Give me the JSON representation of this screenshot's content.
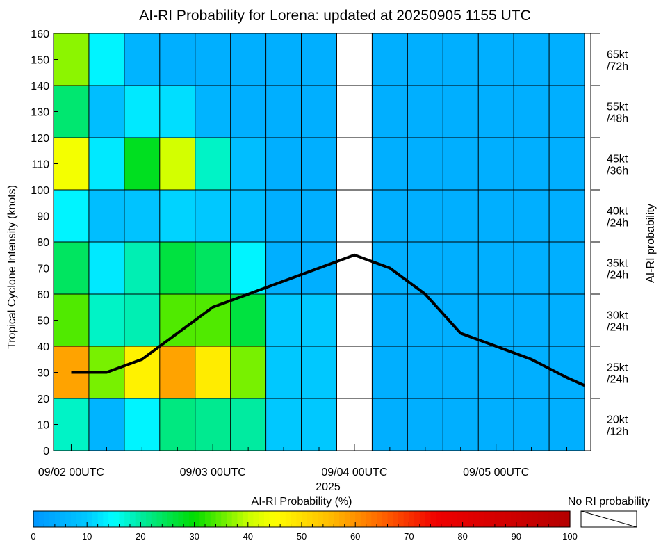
{
  "chart_data": {
    "type": "heatmap",
    "title": "AI-RI Probability for Lorena: updated at 20250905 1155 UTC",
    "ylabel": "Tropical Cyclone Intensity (knots)",
    "right_label": "AI-RI probability",
    "xlabel_year": "2025",
    "ylim": [
      0,
      160
    ],
    "x_tick_labels": [
      "09/02 00UTC",
      "09/03 00UTC",
      "09/04 00UTC",
      "09/05 00UTC"
    ],
    "x_tick_major_hours": [
      0,
      24,
      48,
      72
    ],
    "x_range_hours": [
      -3,
      87
    ],
    "y_ticks": [
      0,
      10,
      20,
      30,
      40,
      50,
      60,
      70,
      80,
      90,
      100,
      110,
      120,
      130,
      140,
      150,
      160
    ],
    "time_steps_hours": [
      0,
      6,
      12,
      18,
      24,
      30,
      36,
      42,
      48,
      54,
      60,
      66,
      72,
      78,
      84
    ],
    "intensity_bins": [
      {
        "label": "20kt /12h",
        "line1": "20kt",
        "line2": "/12h",
        "range": [
          0,
          20
        ]
      },
      {
        "label": "25kt /24h",
        "line1": "25kt",
        "line2": "/24h",
        "range": [
          20,
          40
        ]
      },
      {
        "label": "30kt /24h",
        "line1": "30kt",
        "line2": "/24h",
        "range": [
          40,
          60
        ]
      },
      {
        "label": "35kt /24h",
        "line1": "35kt",
        "line2": "/24h",
        "range": [
          60,
          80
        ]
      },
      {
        "label": "40kt /24h",
        "line1": "40kt",
        "line2": "/24h",
        "range": [
          80,
          100
        ]
      },
      {
        "label": "45kt /36h",
        "line1": "45kt",
        "line2": "/36h",
        "range": [
          100,
          120
        ]
      },
      {
        "label": "55kt /48h",
        "line1": "55kt",
        "line2": "/48h",
        "range": [
          120,
          140
        ]
      },
      {
        "label": "65kt /72h",
        "line1": "65kt",
        "line2": "/72h",
        "range": [
          140,
          160
        ]
      }
    ],
    "probabilities_percent_by_bin_row": [
      [
        18,
        6,
        14,
        22,
        21,
        20,
        10,
        10,
        null,
        5,
        5,
        5,
        5,
        5,
        5
      ],
      [
        58,
        36,
        47,
        58,
        48,
        36,
        10,
        10,
        null,
        5,
        5,
        5,
        5,
        5,
        5
      ],
      [
        34,
        18,
        19,
        34,
        34,
        26,
        10,
        10,
        null,
        5,
        5,
        5,
        5,
        5,
        5
      ],
      [
        24,
        13,
        19,
        26,
        24,
        14,
        5,
        5,
        null,
        5,
        5,
        5,
        5,
        5,
        5
      ],
      [
        14,
        8,
        9,
        11,
        10,
        8,
        5,
        5,
        null,
        5,
        5,
        5,
        5,
        5,
        5
      ],
      [
        44,
        13,
        28,
        41,
        18,
        8,
        5,
        5,
        null,
        5,
        5,
        5,
        5,
        5,
        5
      ],
      [
        23,
        8,
        13,
        12,
        6,
        5,
        5,
        5,
        null,
        5,
        5,
        5,
        5,
        5,
        5
      ],
      [
        37,
        14,
        6,
        5,
        5,
        5,
        5,
        5,
        null,
        5,
        5,
        5,
        5,
        5,
        5
      ]
    ],
    "intensity_forecast": {
      "name": "Forecast intensity",
      "hours": [
        0,
        6,
        12,
        24,
        36,
        48,
        54,
        60,
        66,
        72,
        78,
        84,
        87
      ],
      "knots": [
        30,
        30,
        35,
        55,
        65,
        75,
        70,
        60,
        45,
        40,
        35,
        28,
        25
      ]
    },
    "colorbar": {
      "title": "AI-RI Probability (%)",
      "range": [
        0,
        100
      ],
      "ticks": [
        0,
        10,
        20,
        30,
        40,
        50,
        60,
        70,
        80,
        90,
        100
      ],
      "no_data_label": "No RI probability"
    },
    "colors": {
      "line": "#000000",
      "grid": "#000000",
      "no_data": "#ffffff"
    }
  }
}
